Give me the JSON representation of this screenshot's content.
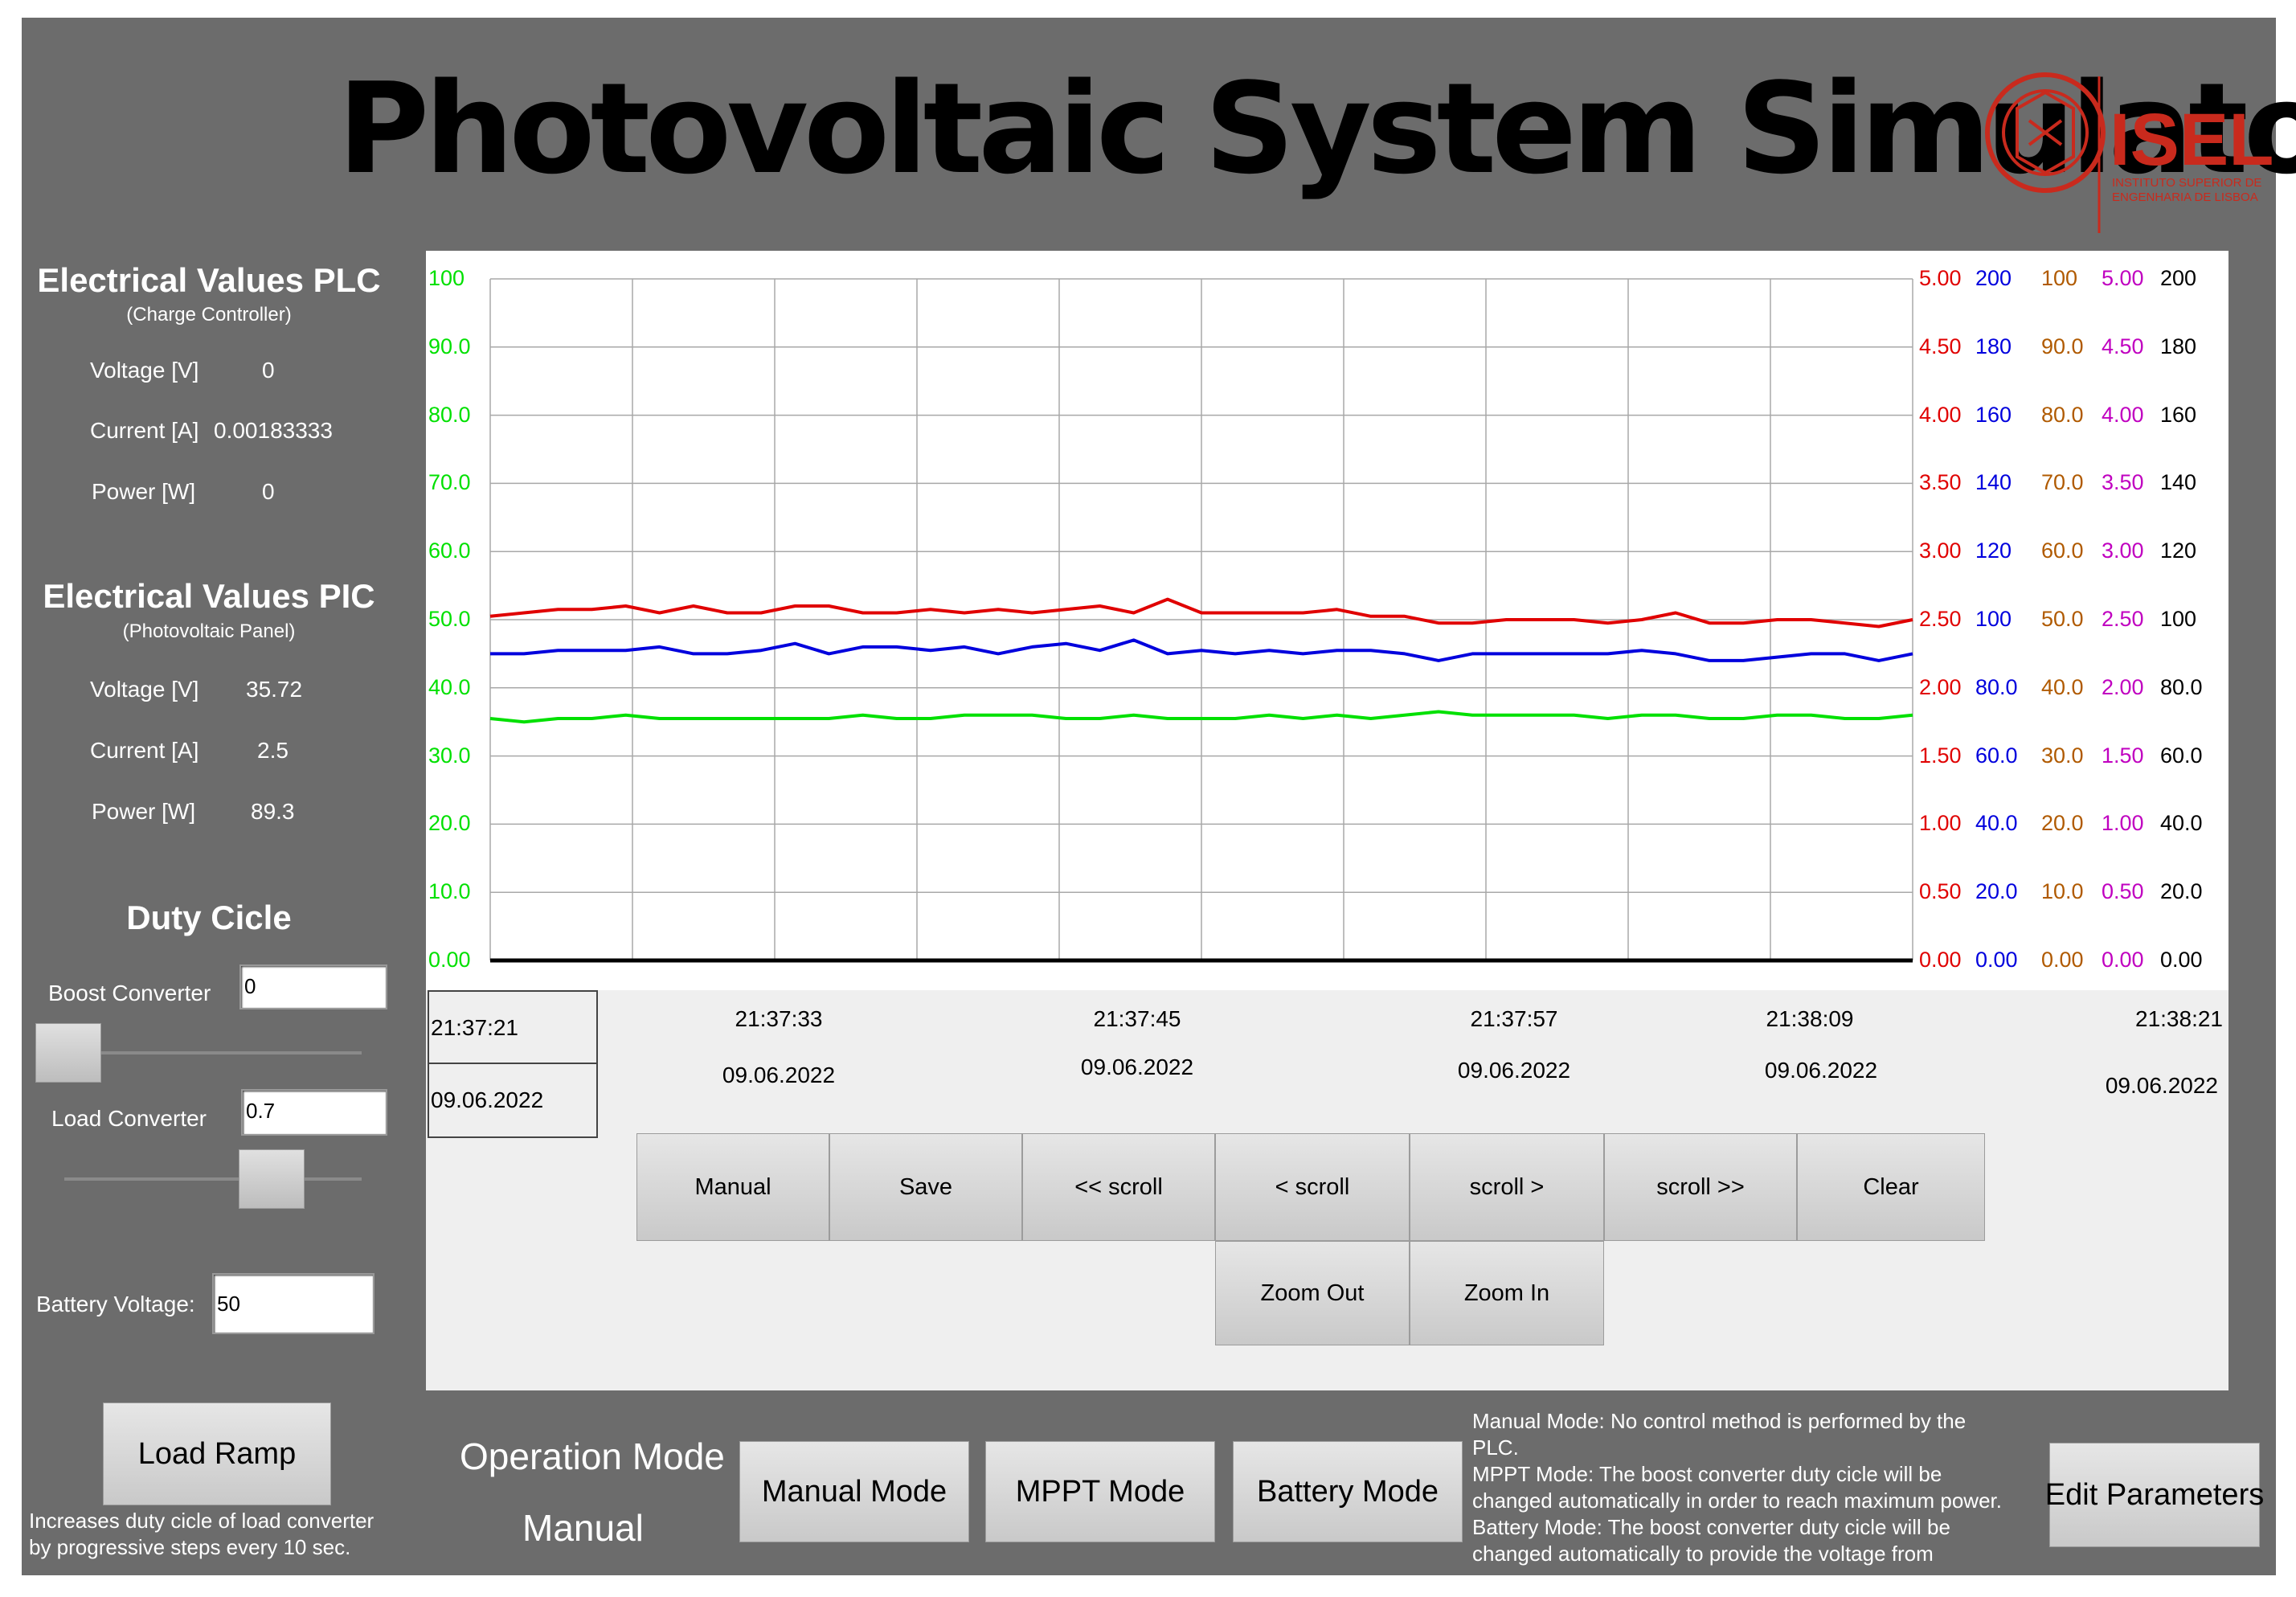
{
  "header": {
    "title": "Photovoltaic System Simulator",
    "logo_text": "ISEL",
    "logo_sub1": "INSTITUTO SUPERIOR DE",
    "logo_sub2": "ENGENHARIA DE LISBOA"
  },
  "plc": {
    "title": "Electrical Values PLC",
    "subtitle": "(Charge Controller)",
    "rows": [
      {
        "label": "Voltage [V]",
        "value": "0"
      },
      {
        "label": "Current [A]",
        "value": "0.00183333"
      },
      {
        "label": "Power [W]",
        "value": "0"
      }
    ]
  },
  "pic": {
    "title": "Electrical Values PIC",
    "subtitle": "(Photovoltaic Panel)",
    "rows": [
      {
        "label": "Voltage [V]",
        "value": "35.72"
      },
      {
        "label": "Current [A]",
        "value": "2.5"
      },
      {
        "label": "Power [W]",
        "value": "89.3"
      }
    ]
  },
  "duty": {
    "title": "Duty Cicle",
    "boost_label": "Boost Converter",
    "boost_value": "0",
    "boost_fraction": 0,
    "load_label": "Load Converter",
    "load_value": "0.7",
    "load_fraction": 0.7
  },
  "battery": {
    "label": "Battery Voltage:",
    "value": "50"
  },
  "load_ramp": {
    "button": "Load Ramp",
    "desc1": "Increases duty cicle of load converter",
    "desc2": "by progressive steps every 10 sec."
  },
  "operation": {
    "label": "Operation Mode",
    "current": "Manual",
    "buttons": [
      "Manual Mode",
      "MPPT Mode",
      "Battery Mode"
    ]
  },
  "info_text": [
    "Manual Mode: No control method is performed by the",
    "PLC.",
    "MPPT Mode: The boost converter duty cicle will be",
    "changed automatically in order to reach maximum power.",
    "Battery Mode: The boost converter duty cicle will be",
    "changed automatically to provide the voltage from"
  ],
  "edit_button": "Edit Parameters",
  "chart_controls": {
    "row1": [
      "Manual",
      "Save",
      "<< scroll",
      "< scroll",
      "scroll >",
      "scroll >>",
      "Clear"
    ],
    "row2": [
      "Zoom Out",
      "Zoom In"
    ]
  },
  "time_axis": {
    "start_time": "21:37:21",
    "start_date": "09.06.2022",
    "labels": [
      {
        "time": "21:37:33",
        "date": "09.06.2022"
      },
      {
        "time": "21:37:45",
        "date": "09.06.2022"
      },
      {
        "time": "21:37:57",
        "date": "09.06.2022"
      },
      {
        "time": "21:38:09",
        "date": "09.06.2022"
      },
      {
        "time": "21:38:21",
        "date": "09.06.2022"
      }
    ]
  },
  "colors": {
    "green": "#00e000",
    "red": "#e00000",
    "blue": "#0000dd",
    "brown": "#b05a00",
    "magenta": "#c000c0",
    "black": "#000000"
  },
  "chart_data": {
    "type": "line",
    "left_axis": [
      "100",
      "90.0",
      "80.0",
      "70.0",
      "60.0",
      "50.0",
      "40.0",
      "30.0",
      "20.0",
      "10.0",
      "0.00"
    ],
    "right_axes": [
      {
        "color": "#e00000",
        "ticks": [
          "5.00",
          "4.50",
          "4.00",
          "3.50",
          "3.00",
          "2.50",
          "2.00",
          "1.50",
          "1.00",
          "0.50",
          "0.00"
        ]
      },
      {
        "color": "#0000dd",
        "ticks": [
          "200",
          "180",
          "160",
          "140",
          "120",
          "100",
          "80.0",
          "60.0",
          "40.0",
          "20.0",
          "0.00"
        ]
      },
      {
        "color": "#b05a00",
        "ticks": [
          "100",
          "90.0",
          "80.0",
          "70.0",
          "60.0",
          "50.0",
          "40.0",
          "30.0",
          "20.0",
          "10.0",
          "0.00"
        ]
      },
      {
        "color": "#c000c0",
        "ticks": [
          "5.00",
          "4.50",
          "4.00",
          "3.50",
          "3.00",
          "2.50",
          "2.00",
          "1.50",
          "1.00",
          "0.50",
          "0.00"
        ]
      },
      {
        "color": "#000000",
        "ticks": [
          "200",
          "180",
          "160",
          "140",
          "120",
          "100",
          "80.0",
          "60.0",
          "40.0",
          "20.0",
          "0.00"
        ]
      }
    ],
    "ylim": [
      0,
      100
    ],
    "grid": true,
    "series": [
      {
        "color": "#e00000",
        "values": [
          50.5,
          51.0,
          51.5,
          51.5,
          52.0,
          51.0,
          52.0,
          51.0,
          51.0,
          52.0,
          52.0,
          51.0,
          51.0,
          51.5,
          51.0,
          51.5,
          51.0,
          51.5,
          52.0,
          51.0,
          53.0,
          51.0,
          51.0,
          51.0,
          51.0,
          51.5,
          50.5,
          50.5,
          49.5,
          49.5,
          50.0,
          50.0,
          50.0,
          49.5,
          50.0,
          51.0,
          49.5,
          49.5,
          50.0,
          50.0,
          49.5,
          49.0,
          50.0
        ]
      },
      {
        "color": "#0000dd",
        "values": [
          45.0,
          45.0,
          45.5,
          45.5,
          45.5,
          46.0,
          45.0,
          45.0,
          45.5,
          46.5,
          45.0,
          46.0,
          46.0,
          45.5,
          46.0,
          45.0,
          46.0,
          46.5,
          45.5,
          47.0,
          45.0,
          45.5,
          45.0,
          45.5,
          45.0,
          45.5,
          45.5,
          45.0,
          44.0,
          45.0,
          45.0,
          45.0,
          45.0,
          45.0,
          45.5,
          45.0,
          44.0,
          44.0,
          44.5,
          45.0,
          45.0,
          44.0,
          45.0
        ]
      },
      {
        "color": "#00e000",
        "values": [
          35.5,
          35.0,
          35.5,
          35.5,
          36.0,
          35.5,
          35.5,
          35.5,
          35.5,
          35.5,
          35.5,
          36.0,
          35.5,
          35.5,
          36.0,
          36.0,
          36.0,
          35.5,
          35.5,
          36.0,
          35.5,
          35.5,
          35.5,
          36.0,
          35.5,
          36.0,
          35.5,
          36.0,
          36.5,
          36.0,
          36.0,
          36.0,
          36.0,
          35.5,
          36.0,
          36.0,
          35.5,
          35.5,
          36.0,
          36.0,
          35.5,
          35.5,
          36.0
        ]
      }
    ]
  }
}
